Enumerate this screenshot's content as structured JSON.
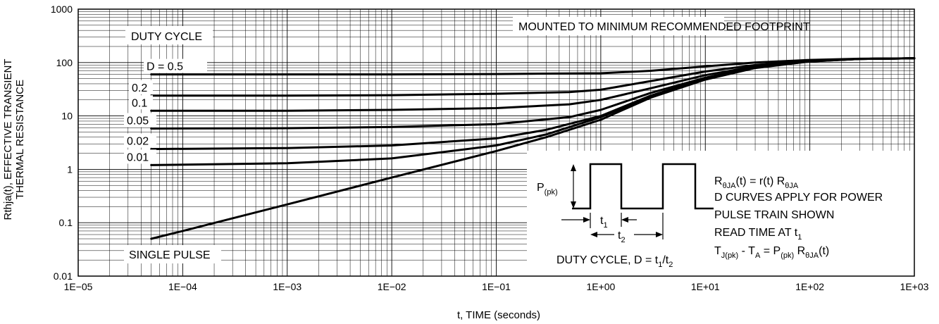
{
  "chart_data": {
    "type": "line",
    "title": "",
    "xlabel": "t, TIME (seconds)",
    "ylabel_line1": "Rthja(t), EFFECTIVE TRANSIENT",
    "ylabel_line2": "THERMAL RESISTANCE",
    "xscale": "log",
    "yscale": "log",
    "xlim": [
      1e-05,
      1000
    ],
    "ylim": [
      0.01,
      1000
    ],
    "grid": true,
    "x_tick_labels": [
      "1E−05",
      "1E−04",
      "1E−03",
      "1E−02",
      "1E−01",
      "1E+00",
      "1E+01",
      "1E+02",
      "1E+03"
    ],
    "y_tick_labels": [
      "0.01",
      "0.1",
      "1",
      "10",
      "100",
      "1000"
    ],
    "series": [
      {
        "name": "D = 0.5",
        "x": [
          5e-05,
          0.001,
          0.01,
          0.1,
          1,
          3,
          10,
          30,
          100,
          300,
          1000
        ],
        "y": [
          60,
          60,
          60,
          61,
          63,
          70,
          85,
          100,
          112,
          118,
          120
        ]
      },
      {
        "name": "0.2",
        "x": [
          5e-05,
          0.001,
          0.01,
          0.1,
          0.5,
          1,
          3,
          10,
          30,
          100,
          300,
          1000
        ],
        "y": [
          24,
          24,
          24.5,
          26,
          28,
          31,
          45,
          68,
          90,
          108,
          117,
          120
        ]
      },
      {
        "name": "0.1",
        "x": [
          5e-05,
          0.001,
          0.01,
          0.1,
          0.5,
          1,
          3,
          10,
          30,
          100,
          300,
          1000
        ],
        "y": [
          12.5,
          12.5,
          13,
          14,
          16.5,
          20,
          33,
          58,
          85,
          107,
          117,
          120
        ]
      },
      {
        "name": "0.05",
        "x": [
          5e-05,
          0.001,
          0.01,
          0.1,
          0.5,
          1,
          3,
          10,
          30,
          100,
          300,
          1000
        ],
        "y": [
          5.8,
          5.9,
          6.2,
          7,
          9.5,
          13,
          27,
          52,
          82,
          106,
          117,
          120
        ]
      },
      {
        "name": "0.02",
        "x": [
          5e-05,
          0.001,
          0.01,
          0.1,
          0.3,
          1,
          3,
          10,
          30,
          100,
          300,
          1000
        ],
        "y": [
          2.4,
          2.5,
          2.8,
          3.8,
          5.5,
          10,
          24,
          50,
          81,
          106,
          117,
          120
        ]
      },
      {
        "name": "0.01",
        "x": [
          5e-05,
          0.001,
          0.01,
          0.1,
          0.3,
          1,
          3,
          10,
          30,
          100,
          300,
          1000
        ],
        "y": [
          1.2,
          1.3,
          1.6,
          2.8,
          4.5,
          9.5,
          23,
          49,
          80,
          105,
          117,
          120
        ]
      },
      {
        "name": "SINGLE PULSE",
        "x": [
          5e-05,
          0.0001,
          0.001,
          0.01,
          0.1,
          0.3,
          1,
          3,
          10,
          30,
          100,
          300,
          1000
        ],
        "y": [
          0.05,
          0.07,
          0.22,
          0.7,
          2.2,
          4,
          8.5,
          22,
          48,
          79,
          105,
          117,
          120
        ]
      }
    ],
    "series_labels": [
      "D = 0.5",
      "0.2",
      "0.1",
      "0.05",
      "0.02",
      "0.01",
      "SINGLE PULSE"
    ],
    "annotations": {
      "duty_cycle": "DUTY CYCLE",
      "mounted": "MOUNTED TO MINIMUM RECOMMENDED FOOTPRINT"
    },
    "inset": {
      "p_label": "P",
      "p_sub": "(pk)",
      "t1_label": "t",
      "t1_sub": "1",
      "t2_label": "t",
      "t2_sub": "2",
      "duty_formula_text": "DUTY CYCLE, D = t",
      "duty_formula_sub1": "1",
      "duty_formula_slash": "/t",
      "duty_formula_sub2": "2",
      "line1_a": "R",
      "line1_sub1": "θJA",
      "line1_b": "(t) = r(t) R",
      "line1_sub2": "θJA",
      "line2": "D CURVES APPLY FOR POWER",
      "line3": "PULSE TRAIN SHOWN",
      "line4_a": "READ TIME AT t",
      "line4_sub": "1",
      "line5_a": "T",
      "line5_sub1": "J(pk)",
      "line5_b": " - T",
      "line5_sub2": "A",
      "line5_c": " = P",
      "line5_sub3": "(pk)",
      "line5_d": " R",
      "line5_sub4": "θJA",
      "line5_e": "(t)"
    }
  }
}
